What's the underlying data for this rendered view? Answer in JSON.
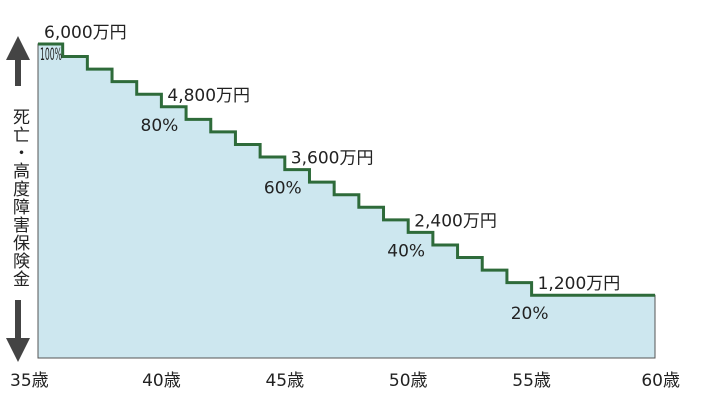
{
  "chart_data": {
    "type": "area",
    "title": "",
    "xlabel": "",
    "ylabel": "死亡・高度障害保険金",
    "x": [
      35,
      36,
      37,
      38,
      39,
      40,
      41,
      42,
      43,
      44,
      45,
      46,
      47,
      48,
      49,
      50,
      51,
      52,
      53,
      54,
      55,
      56,
      57,
      58,
      59,
      60
    ],
    "y": [
      6000,
      5760,
      5520,
      5280,
      5040,
      4800,
      4560,
      4320,
      4080,
      3840,
      3600,
      3360,
      3120,
      2880,
      2640,
      2400,
      2160,
      1920,
      1680,
      1440,
      1200,
      1200,
      1200,
      1200,
      1200,
      1200
    ],
    "xlim": [
      35,
      60
    ],
    "ylim": [
      0,
      6000
    ],
    "x_tick_labels": [
      "35歳",
      "40歳",
      "45歳",
      "50歳",
      "55歳",
      "60歳"
    ],
    "milestones": [
      {
        "age": 35,
        "amount_label": "6,000万円",
        "percent_label": "100%"
      },
      {
        "age": 40,
        "amount_label": "4,800万円",
        "percent_label": "80%"
      },
      {
        "age": 45,
        "amount_label": "3,600万円",
        "percent_label": "60%"
      },
      {
        "age": 50,
        "amount_label": "2,400万円",
        "percent_label": "40%"
      },
      {
        "age": 55,
        "amount_label": "1,200万円",
        "percent_label": "20%"
      }
    ],
    "colors": {
      "fill": "#cde7ef",
      "line": "#2e6b3a",
      "axis": "#555555",
      "arrow": "#444444"
    }
  }
}
